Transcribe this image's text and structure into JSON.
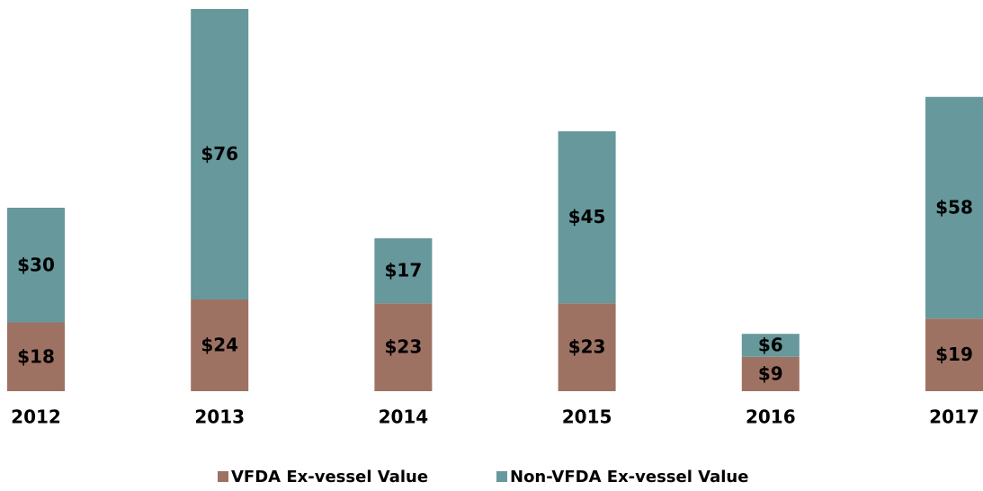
{
  "chart_data": {
    "type": "stacked_bar",
    "categories": [
      "2012",
      "2013",
      "2014",
      "2015",
      "2016",
      "2017"
    ],
    "ylim": [
      0,
      100
    ],
    "series": [
      {
        "name": "VFDA Ex-vessel Value",
        "color": "#9e7263",
        "values": [
          18,
          24,
          23,
          23,
          9,
          19
        ],
        "value_labels": [
          "$18",
          "$24",
          "$23",
          "$23",
          "$9",
          "$19"
        ]
      },
      {
        "name": "Non-VFDA Ex-vessel Value",
        "color": "#66989c",
        "values": [
          30,
          76,
          17,
          45,
          6,
          58
        ],
        "value_labels": [
          "$30",
          "$76",
          "$17",
          "$45",
          "$6",
          "$58"
        ]
      }
    ]
  }
}
